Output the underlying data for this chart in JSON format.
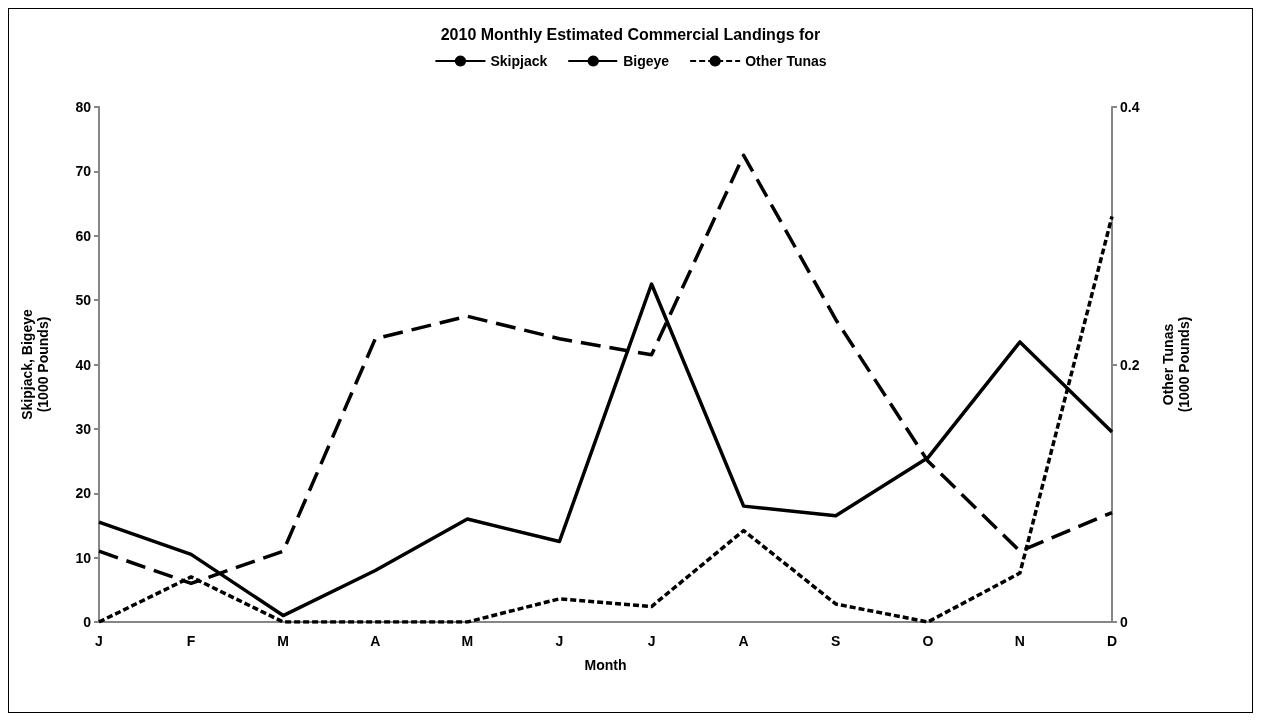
{
  "chart_data": {
    "type": "line",
    "title": "2010 Monthly Estimated Commercial Landings for",
    "xlabel": "Month",
    "ylabel": "Skipjack, Bigeye\n(1000 Pounds)",
    "y2label": "Other Tunas\n(1000 Pounds)",
    "categories": [
      "J",
      "F",
      "M",
      "A",
      "M",
      "J",
      "J",
      "A",
      "S",
      "O",
      "N",
      "D"
    ],
    "series": [
      {
        "name": "Skipjack",
        "color": "#000000",
        "line_style": "solid",
        "values": [
          15.5,
          10.5,
          1,
          8,
          16,
          12.5,
          52.5,
          18,
          16.5,
          25.5,
          43.5,
          29.5
        ]
      },
      {
        "name": "Bigeye",
        "color": "#000000",
        "line_style": "dashed",
        "values": [
          11,
          6,
          11,
          44,
          47.5,
          44,
          41.5,
          72.5,
          47,
          25,
          11,
          17
        ]
      },
      {
        "name": "Other Tunas",
        "color": "#000000",
        "line_style": "dotted",
        "axis": "y2",
        "values": [
          0,
          0.035,
          0,
          0,
          0,
          0.018,
          0.012,
          0.071,
          0.014,
          0,
          0.038,
          0.315
        ]
      }
    ],
    "ylim": [
      0,
      80
    ],
    "yticks": [
      0,
      10,
      20,
      30,
      40,
      50,
      60,
      70,
      80
    ],
    "y2lim": [
      0,
      0.4
    ],
    "y2ticks": [
      0,
      0.2,
      0.4
    ],
    "legend": "top",
    "grid": false,
    "marker": "none"
  }
}
